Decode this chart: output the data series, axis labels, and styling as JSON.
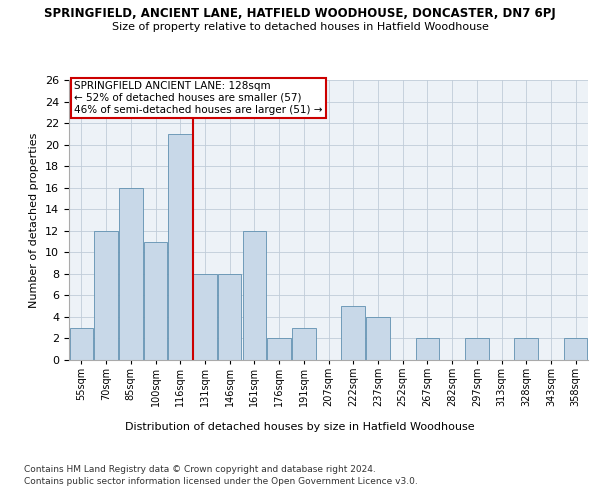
{
  "title_top": "SPRINGFIELD, ANCIENT LANE, HATFIELD WOODHOUSE, DONCASTER, DN7 6PJ",
  "title_sub": "Size of property relative to detached houses in Hatfield Woodhouse",
  "xlabel": "Distribution of detached houses by size in Hatfield Woodhouse",
  "ylabel": "Number of detached properties",
  "categories": [
    "55sqm",
    "70sqm",
    "85sqm",
    "100sqm",
    "116sqm",
    "131sqm",
    "146sqm",
    "161sqm",
    "176sqm",
    "191sqm",
    "207sqm",
    "222sqm",
    "237sqm",
    "252sqm",
    "267sqm",
    "282sqm",
    "297sqm",
    "313sqm",
    "328sqm",
    "343sqm",
    "358sqm"
  ],
  "values": [
    3,
    12,
    16,
    11,
    21,
    8,
    8,
    12,
    2,
    3,
    0,
    5,
    4,
    0,
    2,
    0,
    2,
    0,
    2,
    0,
    2
  ],
  "bar_color": "#c8d8e8",
  "bar_edge_color": "#6090b0",
  "ylim": [
    0,
    26
  ],
  "yticks": [
    0,
    2,
    4,
    6,
    8,
    10,
    12,
    14,
    16,
    18,
    20,
    22,
    24,
    26
  ],
  "vline_x": 4.5,
  "vline_color": "#cc0000",
  "annotation_text": "SPRINGFIELD ANCIENT LANE: 128sqm\n← 52% of detached houses are smaller (57)\n46% of semi-detached houses are larger (51) →",
  "annotation_box_color": "#ffffff",
  "annotation_box_edge": "#cc0000",
  "footnote1": "Contains HM Land Registry data © Crown copyright and database right 2024.",
  "footnote2": "Contains public sector information licensed under the Open Government Licence v3.0.",
  "bg_color": "#edf2f7",
  "grid_color": "#c0ccd8"
}
